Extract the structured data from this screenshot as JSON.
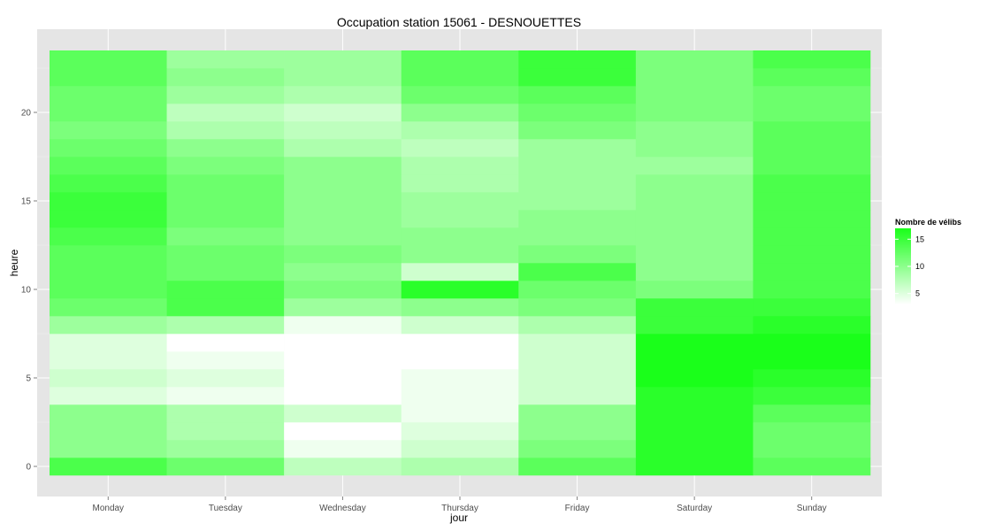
{
  "chart_data": {
    "type": "heatmap",
    "title": "Occupation station 15061 - DESNOUETTES",
    "xlabel": "jour",
    "ylabel": "heure",
    "categories": [
      "Monday",
      "Tuesday",
      "Wednesday",
      "Thursday",
      "Friday",
      "Saturday",
      "Sunday"
    ],
    "hours": [
      0,
      1,
      2,
      3,
      4,
      5,
      6,
      7,
      8,
      9,
      10,
      11,
      12,
      13,
      14,
      15,
      16,
      17,
      18,
      19,
      20,
      21,
      22,
      23
    ],
    "y_ticks": [
      0,
      5,
      10,
      15,
      20
    ],
    "ylim": [
      -0.5,
      23.5
    ],
    "grid": true,
    "legend": {
      "title": "Nombre de vélibs",
      "position": "right",
      "ticks": [
        5,
        10,
        15
      ],
      "min": 3,
      "max": 17,
      "color_low": "#ffffff",
      "color_high": "#1aff1a"
    },
    "values": [
      [
        14,
        12,
        7,
        8,
        13,
        16,
        13
      ],
      [
        10,
        9,
        4,
        6,
        11,
        16,
        12
      ],
      [
        10,
        8,
        3,
        5,
        10,
        16,
        12
      ],
      [
        10,
        8,
        6,
        4,
        10,
        16,
        13
      ],
      [
        5,
        4,
        1,
        4,
        6,
        16,
        15
      ],
      [
        6,
        5,
        1,
        4,
        6,
        17,
        16
      ],
      [
        5,
        4,
        1,
        3,
        6,
        17,
        17
      ],
      [
        5,
        3,
        1,
        3,
        6,
        17,
        17
      ],
      [
        9,
        8,
        4,
        6,
        8,
        15,
        16
      ],
      [
        12,
        14,
        9,
        10,
        11,
        15,
        15
      ],
      [
        13,
        14,
        11,
        16,
        12,
        11,
        14
      ],
      [
        13,
        12,
        10,
        6,
        14,
        10,
        14
      ],
      [
        13,
        12,
        11,
        10,
        11,
        10,
        14
      ],
      [
        14,
        11,
        10,
        10,
        10,
        10,
        14
      ],
      [
        15,
        12,
        10,
        9,
        10,
        10,
        14
      ],
      [
        15,
        12,
        10,
        9,
        9,
        10,
        14
      ],
      [
        14,
        12,
        10,
        8,
        9,
        10,
        14
      ],
      [
        13,
        11,
        10,
        8,
        9,
        9,
        13
      ],
      [
        12,
        10,
        8,
        7,
        9,
        10,
        13
      ],
      [
        11,
        8,
        7,
        8,
        11,
        10,
        13
      ],
      [
        12,
        7,
        6,
        10,
        12,
        11,
        12
      ],
      [
        12,
        9,
        8,
        12,
        13,
        11,
        12
      ],
      [
        13,
        10,
        9,
        13,
        15,
        11,
        13
      ],
      [
        13,
        9,
        9,
        13,
        15,
        11,
        14
      ]
    ]
  }
}
